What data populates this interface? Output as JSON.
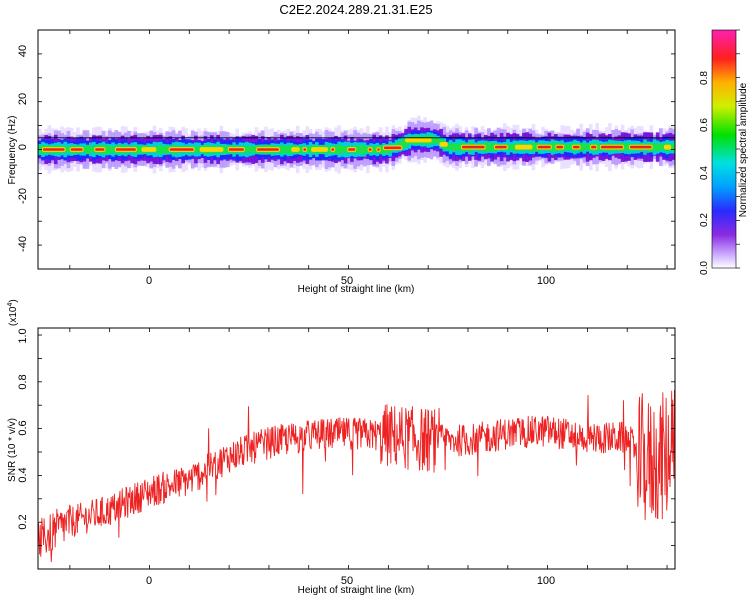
{
  "title": "C2E2.2024.289.21.31.E25",
  "colors": {
    "axis": "#000000",
    "snr_line": "#ee2222",
    "spectrogram_background": "#ffffff",
    "zero_line": "#000000"
  },
  "chart_data": [
    {
      "type": "heatmap",
      "xlabel": "Height of straight line (km)",
      "ylabel": "Frequency (Hz)",
      "xlim": [
        -28,
        132
      ],
      "ylim": [
        -50,
        50
      ],
      "x_ticks": [
        "0",
        "50",
        "100"
      ],
      "y_ticks": [
        "40",
        "20",
        "0",
        "-20",
        "-40"
      ],
      "colorbar": {
        "label": "Normalized spectral amplitude",
        "range": [
          0.0,
          1.0
        ],
        "ticks": [
          "0.0",
          "0.2",
          "0.4",
          "0.6",
          "0.8"
        ],
        "colormap": "rainbow (purple-blue-cyan-green-yellow-red-magenta)"
      },
      "band": {
        "center_frequency_hz": [
          {
            "x": -28,
            "y": 0
          },
          {
            "x": 60,
            "y": 0
          },
          {
            "x": 63,
            "y": 2
          },
          {
            "x": 66,
            "y": 4
          },
          {
            "x": 72,
            "y": 4
          },
          {
            "x": 75,
            "y": 1
          },
          {
            "x": 80,
            "y": 1
          },
          {
            "x": 132,
            "y": 1
          }
        ],
        "half_width_hz": 3
      }
    },
    {
      "type": "line",
      "xlabel": "Height of straight line (km)",
      "ylabel": "SNR (10 * v/v)",
      "y_multiplier": "(x10",
      "y_multiplier_exponent": "4",
      "y_multiplier_close": ")",
      "xlim": [
        -28,
        132
      ],
      "ylim": [
        0,
        1.03
      ],
      "x_ticks": [
        "0",
        "50",
        "100"
      ],
      "y_ticks": [
        "0.2",
        "0.4",
        "0.6",
        "0.8",
        "1.0"
      ],
      "series": [
        {
          "x": [
            -28,
            -20,
            -10,
            0,
            10,
            20,
            30,
            40,
            50,
            60,
            70,
            80,
            90,
            100,
            110,
            120,
            125,
            132
          ],
          "y": [
            0.12,
            0.2,
            0.25,
            0.33,
            0.38,
            0.48,
            0.54,
            0.57,
            0.58,
            0.57,
            0.55,
            0.55,
            0.58,
            0.59,
            0.56,
            0.56,
            0.45,
            0.5
          ]
        }
      ]
    }
  ]
}
